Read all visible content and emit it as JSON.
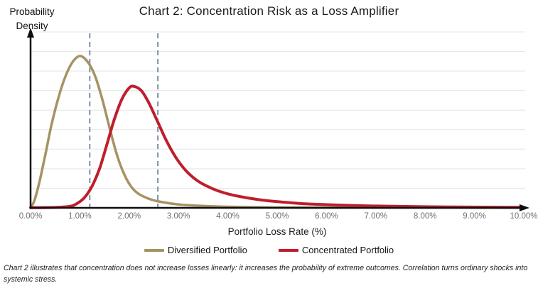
{
  "caption": "Chart 2 illustrates that concentration does not increase losses linearly: it increases the probability of extreme outcomes. Correlation turns ordinary shocks into systemic stress.",
  "colors": {
    "diversified": "#a69363",
    "concentrated": "#be1e2d",
    "dashed_reference": "#7d91aa",
    "gridline": "#e4e5e7",
    "axis": "#0e0e0f",
    "tick_text": "#6e6f72",
    "title_text": "#1b1b1d"
  },
  "chart_data": {
    "type": "line",
    "title": "Chart 2: Concentration Risk as a Loss Amplifier",
    "xlabel": "Portfolio Loss Rate (%)",
    "ylabel": "Probability Density",
    "ylabel_lines": [
      "Probability",
      "Density"
    ],
    "xlim": [
      0,
      10
    ],
    "grid": "horizontal",
    "legend_position": "bottom-center",
    "x_ticks": [
      "0.00%",
      "1.00%",
      "2.00%",
      "3.00%",
      "4.00%",
      "5.00%",
      "6.00%",
      "7.00%",
      "8.00%",
      "9.00%",
      "10.00%"
    ],
    "x_tick_values": [
      0,
      1,
      2,
      3,
      4,
      5,
      6,
      7,
      8,
      9,
      10
    ],
    "dashed_reference_lines_pct": [
      1.2,
      2.58
    ],
    "y_units": "relative probability density (unlabeled axis, peak of diversified curve = 1.0)",
    "series": [
      {
        "name": "Diversified Portfolio",
        "color": "#a69363",
        "peak_loss_rate_pct": 1.0,
        "points": [
          [
            0.0,
            0.0
          ],
          [
            0.08,
            0.05
          ],
          [
            0.18,
            0.17
          ],
          [
            0.3,
            0.35
          ],
          [
            0.42,
            0.54
          ],
          [
            0.56,
            0.72
          ],
          [
            0.7,
            0.86
          ],
          [
            0.85,
            0.96
          ],
          [
            1.0,
            1.0
          ],
          [
            1.15,
            0.965
          ],
          [
            1.3,
            0.875
          ],
          [
            1.45,
            0.72
          ],
          [
            1.6,
            0.53
          ],
          [
            1.75,
            0.35
          ],
          [
            1.9,
            0.22
          ],
          [
            2.05,
            0.135
          ],
          [
            2.2,
            0.09
          ],
          [
            2.4,
            0.06
          ],
          [
            2.6,
            0.042
          ],
          [
            2.9,
            0.026
          ],
          [
            3.2,
            0.017
          ],
          [
            3.6,
            0.011
          ],
          [
            4.0,
            0.007
          ],
          [
            4.5,
            0.0045
          ],
          [
            5.0,
            0.003
          ],
          [
            6.0,
            0.0018
          ],
          [
            7.0,
            0.0012
          ],
          [
            8.5,
            0.0008
          ],
          [
            10.0,
            0.0005
          ]
        ]
      },
      {
        "name": "Concentrated Portfolio",
        "color": "#be1e2d",
        "peak_loss_rate_pct": 2.05,
        "points": [
          [
            0.0,
            0.001
          ],
          [
            0.5,
            0.003
          ],
          [
            0.8,
            0.01
          ],
          [
            0.95,
            0.03
          ],
          [
            1.1,
            0.07
          ],
          [
            1.25,
            0.145
          ],
          [
            1.4,
            0.26
          ],
          [
            1.55,
            0.42
          ],
          [
            1.7,
            0.585
          ],
          [
            1.85,
            0.715
          ],
          [
            2.0,
            0.79
          ],
          [
            2.1,
            0.8
          ],
          [
            2.25,
            0.77
          ],
          [
            2.4,
            0.69
          ],
          [
            2.58,
            0.565
          ],
          [
            2.75,
            0.445
          ],
          [
            2.95,
            0.33
          ],
          [
            3.15,
            0.245
          ],
          [
            3.4,
            0.175
          ],
          [
            3.7,
            0.125
          ],
          [
            4.0,
            0.092
          ],
          [
            4.35,
            0.068
          ],
          [
            4.7,
            0.051
          ],
          [
            5.1,
            0.038
          ],
          [
            5.5,
            0.028
          ],
          [
            6.0,
            0.021
          ],
          [
            6.5,
            0.016
          ],
          [
            7.0,
            0.012
          ],
          [
            7.7,
            0.009
          ],
          [
            8.5,
            0.006
          ],
          [
            9.2,
            0.0045
          ],
          [
            10.0,
            0.0035
          ]
        ]
      }
    ]
  }
}
